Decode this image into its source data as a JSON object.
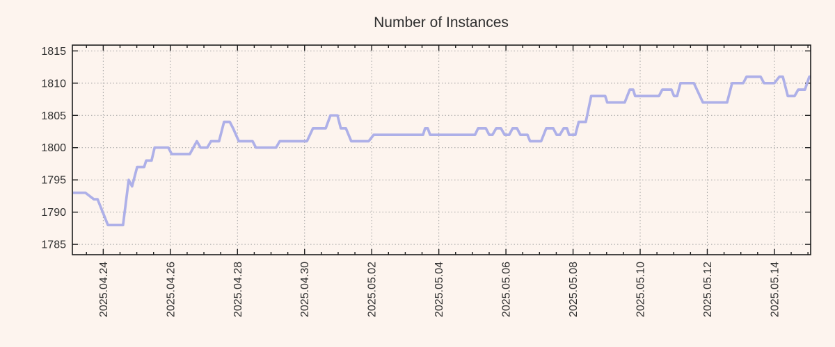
{
  "page": {
    "background": "#fdf4ee"
  },
  "chart_data": {
    "type": "line",
    "title": "Number of Instances",
    "legend": "none",
    "grid": "dotted",
    "x_units": "days (day 1 = 2025.04.24, sampled ~every 4h)",
    "xlim": [
      0.08,
      22.08
    ],
    "ylim": [
      1783.4,
      1815.9
    ],
    "y_ticks": [
      1785,
      1790,
      1795,
      1800,
      1805,
      1810,
      1815
    ],
    "x_major_ticks": {
      "days": [
        1,
        3,
        5,
        7,
        9,
        11,
        13,
        15,
        17,
        19,
        21
      ],
      "labels": [
        "2025.04.24",
        "2025.04.26",
        "2025.04.28",
        "2025.04.30",
        "2025.05.02",
        "2025.05.04",
        "2025.05.06",
        "2025.05.08",
        "2025.05.10",
        "2025.05.12",
        "2025.05.14"
      ]
    },
    "x_minor_tick_interval": 0.5,
    "colors": {
      "background": "#fdf4ee",
      "line": "#aeb0e8",
      "grid": "#a0a0a0",
      "frame": "#1c1c1c",
      "text": "#2e2e2e"
    },
    "points": [
      [
        0.1,
        1793
      ],
      [
        0.47,
        1793
      ],
      [
        0.72,
        1792
      ],
      [
        0.83,
        1792
      ],
      [
        1.14,
        1788
      ],
      [
        1.59,
        1788
      ],
      [
        1.76,
        1795
      ],
      [
        1.86,
        1794
      ],
      [
        2.01,
        1797
      ],
      [
        2.22,
        1797
      ],
      [
        2.28,
        1798
      ],
      [
        2.44,
        1798
      ],
      [
        2.53,
        1800
      ],
      [
        2.94,
        1800
      ],
      [
        3.04,
        1799
      ],
      [
        3.58,
        1799
      ],
      [
        3.79,
        1801
      ],
      [
        3.9,
        1800
      ],
      [
        4.1,
        1800
      ],
      [
        4.21,
        1801
      ],
      [
        4.45,
        1801
      ],
      [
        4.6,
        1804
      ],
      [
        4.77,
        1804
      ],
      [
        4.87,
        1803
      ],
      [
        5.04,
        1801
      ],
      [
        5.45,
        1801
      ],
      [
        5.55,
        1800
      ],
      [
        6.15,
        1800
      ],
      [
        6.26,
        1801
      ],
      [
        7.07,
        1801
      ],
      [
        7.25,
        1803
      ],
      [
        7.63,
        1803
      ],
      [
        7.77,
        1805
      ],
      [
        7.98,
        1805
      ],
      [
        8.08,
        1803
      ],
      [
        8.23,
        1803
      ],
      [
        8.39,
        1801
      ],
      [
        8.91,
        1801
      ],
      [
        9.06,
        1802
      ],
      [
        10.53,
        1802
      ],
      [
        10.59,
        1803
      ],
      [
        10.67,
        1803
      ],
      [
        10.74,
        1802
      ],
      [
        12.08,
        1802
      ],
      [
        12.17,
        1803
      ],
      [
        12.4,
        1803
      ],
      [
        12.5,
        1802
      ],
      [
        12.6,
        1802
      ],
      [
        12.71,
        1803
      ],
      [
        12.85,
        1803
      ],
      [
        12.96,
        1802
      ],
      [
        13.1,
        1802
      ],
      [
        13.2,
        1803
      ],
      [
        13.33,
        1803
      ],
      [
        13.43,
        1802
      ],
      [
        13.64,
        1802
      ],
      [
        13.72,
        1801
      ],
      [
        14.05,
        1801
      ],
      [
        14.2,
        1803
      ],
      [
        14.41,
        1803
      ],
      [
        14.51,
        1802
      ],
      [
        14.61,
        1802
      ],
      [
        14.72,
        1803
      ],
      [
        14.82,
        1803
      ],
      [
        14.88,
        1802
      ],
      [
        15.07,
        1802
      ],
      [
        15.17,
        1804
      ],
      [
        15.38,
        1804
      ],
      [
        15.54,
        1808
      ],
      [
        15.96,
        1808
      ],
      [
        16.02,
        1807
      ],
      [
        16.54,
        1807
      ],
      [
        16.69,
        1809
      ],
      [
        16.79,
        1809
      ],
      [
        16.85,
        1808
      ],
      [
        17.56,
        1808
      ],
      [
        17.66,
        1809
      ],
      [
        17.93,
        1809
      ],
      [
        18.01,
        1808
      ],
      [
        18.1,
        1808
      ],
      [
        18.2,
        1810
      ],
      [
        18.6,
        1810
      ],
      [
        18.87,
        1807
      ],
      [
        19.59,
        1807
      ],
      [
        19.74,
        1810
      ],
      [
        20.07,
        1810
      ],
      [
        20.17,
        1811
      ],
      [
        20.59,
        1811
      ],
      [
        20.69,
        1810
      ],
      [
        21.0,
        1810
      ],
      [
        21.15,
        1811
      ],
      [
        21.25,
        1811
      ],
      [
        21.4,
        1808
      ],
      [
        21.6,
        1808
      ],
      [
        21.71,
        1809
      ],
      [
        21.91,
        1809
      ],
      [
        22.04,
        1811
      ],
      [
        22.08,
        1811
      ]
    ]
  }
}
